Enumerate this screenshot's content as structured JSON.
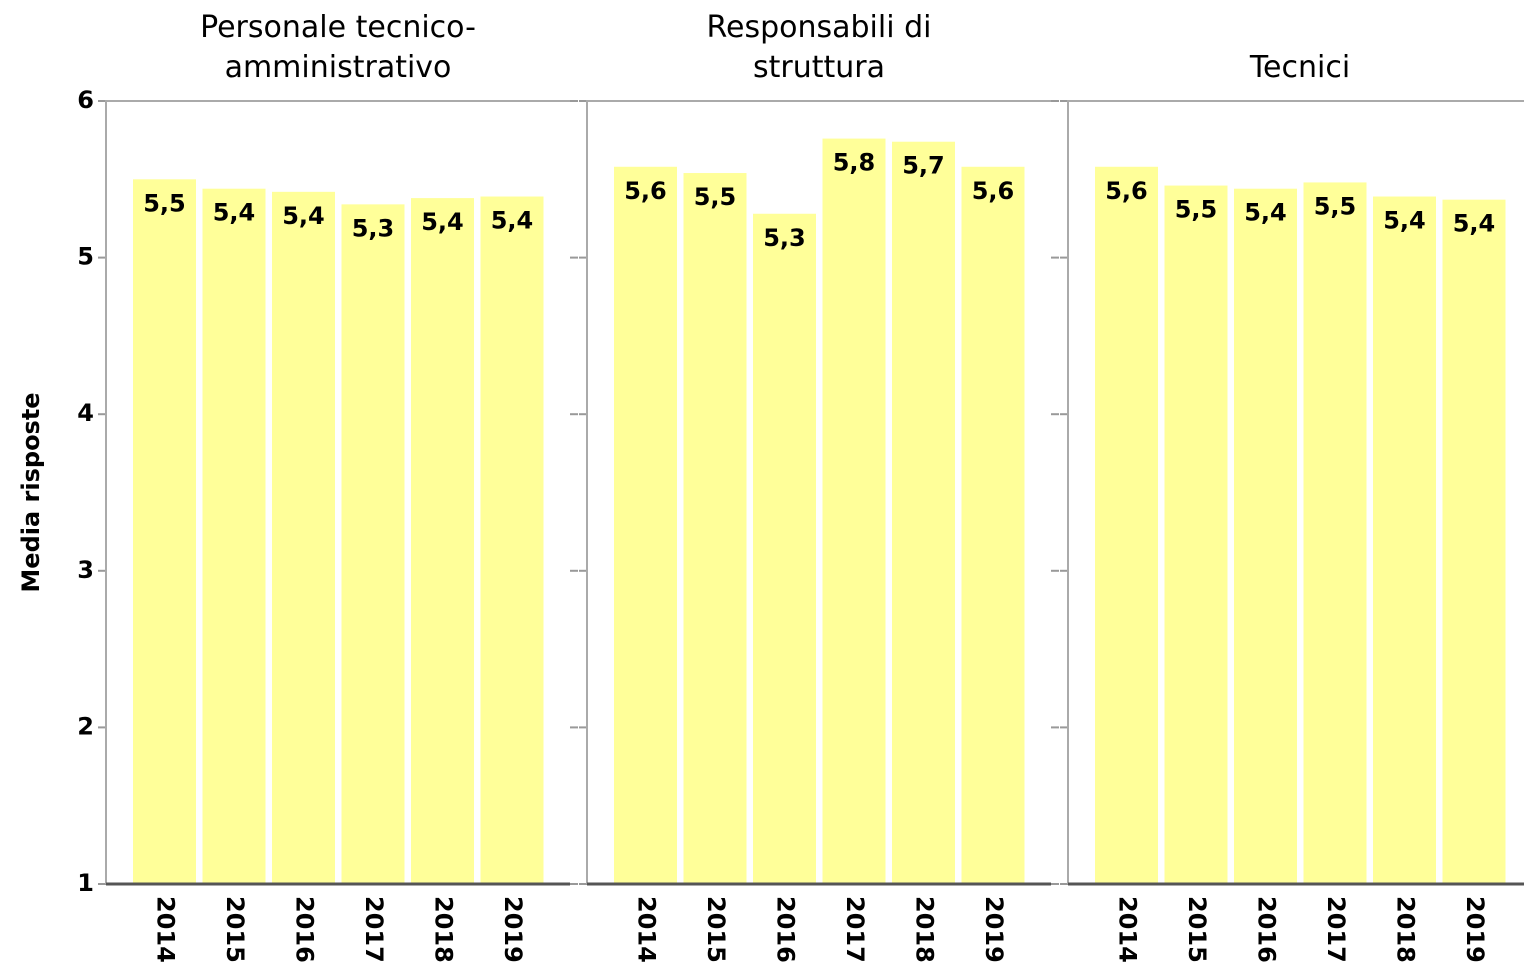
{
  "chart_data": [
    {
      "type": "bar",
      "title": "Personale tecnico-amministrativo",
      "y_label": "Media risposte",
      "categories": [
        "2014",
        "2015",
        "2016",
        "2017",
        "2018",
        "2019"
      ],
      "values": [
        5.5,
        5.44,
        5.42,
        5.34,
        5.38,
        5.39
      ],
      "value_labels": [
        "5,5",
        "5,4",
        "5,4",
        "5,3",
        "5,4",
        "5,4"
      ],
      "color": "#ffff99",
      "ylim": [
        1,
        6
      ],
      "yticks": [
        1,
        2,
        3,
        4,
        5,
        6
      ]
    },
    {
      "type": "bar",
      "title": "Responsabili di struttura",
      "categories": [
        "2014",
        "2015",
        "2016",
        "2017",
        "2018",
        "2019"
      ],
      "values": [
        5.58,
        5.54,
        5.28,
        5.76,
        5.74,
        5.58
      ],
      "value_labels": [
        "5,6",
        "5,5",
        "5,3",
        "5,8",
        "5,7",
        "5,6"
      ],
      "color": "#ffff99",
      "ylim": [
        1,
        6
      ],
      "yticks": [
        1,
        2,
        3,
        4,
        5,
        6
      ]
    },
    {
      "type": "bar",
      "title": "Tecnici",
      "categories": [
        "2014",
        "2015",
        "2016",
        "2017",
        "2018",
        "2019"
      ],
      "values": [
        5.58,
        5.46,
        5.44,
        5.48,
        5.39,
        5.37
      ],
      "value_labels": [
        "5,6",
        "5,5",
        "5,4",
        "5,5",
        "5,4",
        "5,4"
      ],
      "color": "#ffff99",
      "ylim": [
        1,
        6
      ],
      "yticks": [
        1,
        2,
        3,
        4,
        5,
        6
      ]
    }
  ]
}
